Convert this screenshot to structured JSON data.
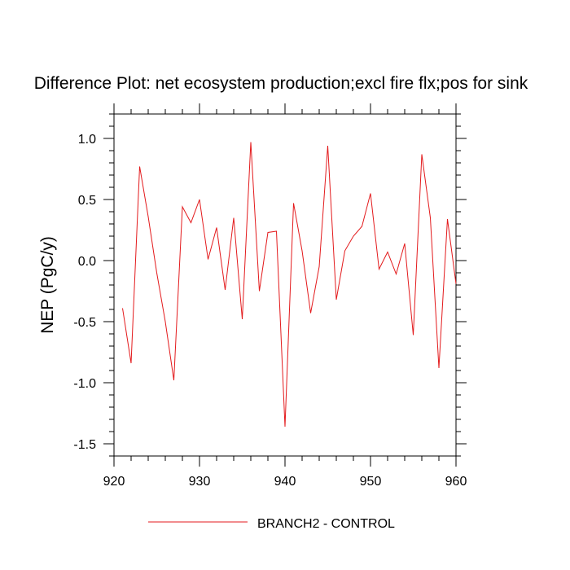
{
  "chart_data": {
    "type": "line",
    "title": "Difference Plot: net ecosystem production;excl fire flx;pos for sink",
    "xlabel": "",
    "ylabel": "NEP  (PgC/y)",
    "xlim": [
      920,
      960
    ],
    "ylim": [
      -1.6,
      1.2
    ],
    "x_ticks": [
      920,
      930,
      940,
      950,
      960
    ],
    "x_tick_labels": [
      "920",
      "930",
      "940",
      "950",
      "960"
    ],
    "y_ticks": [
      -1.5,
      -1.0,
      -0.5,
      0.0,
      0.5,
      1.0
    ],
    "y_tick_labels": [
      "-1.5",
      "-1.0",
      "-0.5",
      "0.0",
      "0.5",
      "1.0"
    ],
    "grid": false,
    "legend_position": "bottom-center",
    "series": [
      {
        "name": "BRANCH2 - CONTROL",
        "color": "#e31a1c",
        "x": [
          921,
          922,
          923,
          924,
          925,
          926,
          927,
          928,
          929,
          930,
          931,
          932,
          933,
          934,
          935,
          936,
          937,
          938,
          939,
          940,
          941,
          942,
          943,
          944,
          945,
          946,
          947,
          948,
          949,
          950,
          951,
          952,
          953,
          954,
          955,
          956,
          957,
          958,
          959,
          960
        ],
        "values": [
          -0.39,
          -0.84,
          0.77,
          0.36,
          -0.1,
          -0.5,
          -0.98,
          0.44,
          0.31,
          0.5,
          0.01,
          0.27,
          -0.24,
          0.35,
          -0.48,
          0.97,
          -0.25,
          0.23,
          0.24,
          -1.36,
          0.47,
          0.08,
          -0.43,
          -0.05,
          0.94,
          -0.32,
          0.08,
          0.2,
          0.28,
          0.55,
          -0.07,
          0.07,
          -0.11,
          0.14,
          -0.61,
          0.87,
          0.35,
          -0.88,
          0.34,
          -0.19
        ]
      }
    ]
  }
}
